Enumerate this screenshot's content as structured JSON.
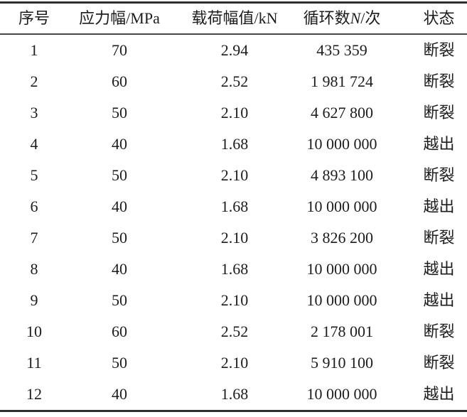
{
  "table": {
    "columns": [
      {
        "label": "序号"
      },
      {
        "label": "应力幅/MPa"
      },
      {
        "label": "载荷幅值/kN"
      },
      {
        "label_prefix": "循环数",
        "label_var": "N",
        "label_suffix": "/次"
      },
      {
        "label": "状态"
      }
    ],
    "rows": [
      [
        "1",
        "70",
        "2.94",
        "435 359",
        "断裂"
      ],
      [
        "2",
        "60",
        "2.52",
        "1 981 724",
        "断裂"
      ],
      [
        "3",
        "50",
        "2.10",
        "4 627 800",
        "断裂"
      ],
      [
        "4",
        "40",
        "1.68",
        "10 000 000",
        "越出"
      ],
      [
        "5",
        "50",
        "2.10",
        "4 893 100",
        "断裂"
      ],
      [
        "6",
        "40",
        "1.68",
        "10 000 000",
        "越出"
      ],
      [
        "7",
        "50",
        "2.10",
        "3 826 200",
        "断裂"
      ],
      [
        "8",
        "40",
        "1.68",
        "10 000 000",
        "越出"
      ],
      [
        "9",
        "50",
        "2.10",
        "10 000 000",
        "越出"
      ],
      [
        "10",
        "60",
        "2.52",
        "2 178 001",
        "断裂"
      ],
      [
        "11",
        "50",
        "2.10",
        "5 910 100",
        "断裂"
      ],
      [
        "12",
        "40",
        "1.68",
        "10 000 000",
        "越出"
      ]
    ],
    "status_values": {
      "fracture": "断裂",
      "runout": "越出"
    }
  },
  "colors": {
    "text": "#1c1c1c",
    "thick_rule": "#2e2e2e",
    "header_rule": "#454545",
    "background": "#ffffff"
  }
}
